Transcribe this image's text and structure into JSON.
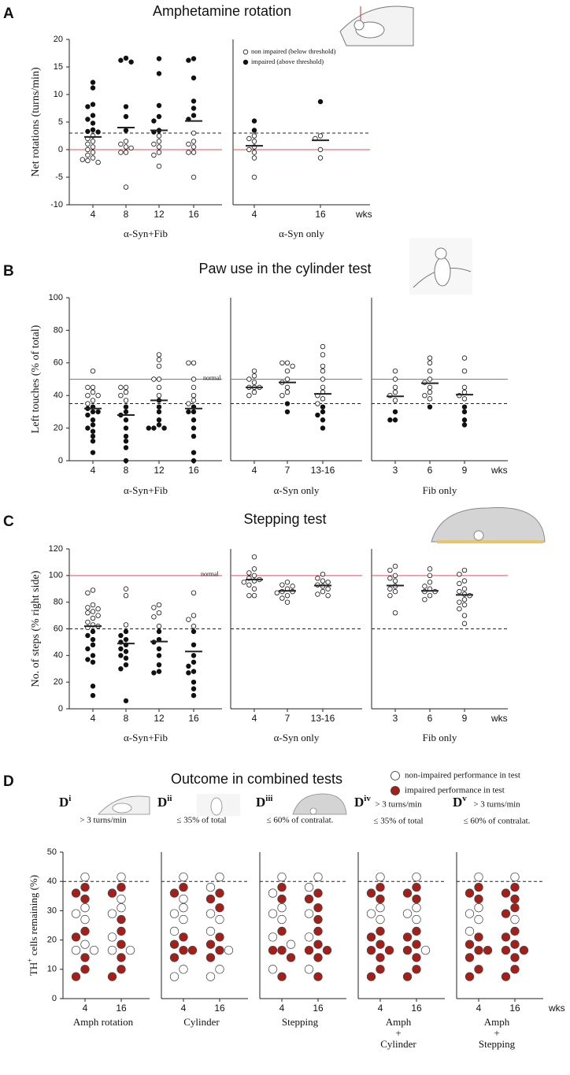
{
  "chart_data": [
    {
      "type": "strip",
      "panel": "A",
      "title": "Amphetamine rotation",
      "ylabel": "Net rotations (turns/min)",
      "ylim": [
        -10,
        20
      ],
      "yticks": [
        -10,
        -5,
        0,
        5,
        10,
        15,
        20
      ],
      "reference_line": 0,
      "threshold_line": 3,
      "reference_color": "#e0505a",
      "impaired_color": "#111111",
      "non_impaired_color": "#ffffff",
      "legend": [
        "non impaired (below threshold)",
        "impaired (above threshold)"
      ],
      "x_unit": "wks",
      "groups": [
        {
          "name": "α-Syn+Fib",
          "categories": [
            "4",
            "8",
            "12",
            "16"
          ],
          "non_impaired": [
            [
              2.5,
              2.0,
              1.5,
              1.0,
              0.5,
              0,
              -0.5,
              -1.0,
              -1.5,
              -2.0,
              -2.3,
              -1.8
            ],
            [
              1.5,
              1.0,
              0.5,
              0.3,
              -0.5,
              -0.5,
              -6.8
            ],
            [
              2.5,
              1.5,
              1.0,
              0.5,
              -0.5,
              -1.0,
              -3.0
            ],
            [
              3.0,
              1.5,
              1.0,
              0.5,
              -0.5,
              -0.5,
              -5.0
            ]
          ],
          "impaired": [
            [
              12.2,
              11.2,
              8.2,
              7.8,
              6.2,
              5.5,
              4.8,
              3.6,
              3.3,
              3.2
            ],
            [
              16.6,
              16.2,
              15.9,
              7.8,
              6.0,
              3.5
            ],
            [
              16.5,
              13.8,
              8.0,
              6.0,
              5.2,
              3.5,
              3.2
            ],
            [
              16.5,
              16.2,
              13.0,
              8.8,
              7.5,
              6.2,
              5.5
            ]
          ],
          "means": [
            2.3,
            4.0,
            3.5,
            5.2
          ]
        },
        {
          "name": "α-Syn only",
          "categories": [
            "4",
            "16"
          ],
          "non_impaired": [
            [
              2.5,
              2.0,
              1.5,
              0.5,
              0,
              -0.5,
              -1.5,
              -5.0
            ],
            [
              2.5,
              2.0,
              0,
              -1.5
            ]
          ],
          "impaired": [
            [
              5.2,
              3.5
            ],
            [
              8.7
            ]
          ],
          "means": [
            0.7,
            1.7
          ]
        }
      ]
    },
    {
      "type": "strip",
      "panel": "B",
      "title": "Paw use in the cylinder test",
      "ylabel": "Left touches (% of total)",
      "ylim": [
        0,
        100
      ],
      "yticks": [
        0,
        20,
        40,
        60,
        80,
        100
      ],
      "reference_line": 50,
      "threshold_line": 35,
      "reference_label": "normal",
      "reference_color": "#e0505a",
      "impaired_color": "#111111",
      "non_impaired_color": "#ffffff",
      "x_unit": "wks",
      "groups": [
        {
          "name": "α-Syn+Fib",
          "categories": [
            "4",
            "8",
            "12",
            "16"
          ],
          "non_impaired": [
            [
              55,
              45,
              45,
              42,
              40,
              40,
              37,
              35
            ],
            [
              45,
              45,
              42,
              40,
              37
            ],
            [
              65,
              62,
              58,
              50,
              50,
              45,
              40
            ],
            [
              60,
              60,
              50,
              45,
              40,
              37,
              35
            ]
          ],
          "impaired": [
            [
              33,
              32,
              30,
              30,
              28,
              25,
              22,
              20,
              18,
              15,
              12,
              5
            ],
            [
              33,
              30,
              28,
              25,
              20,
              15,
              12,
              8,
              0
            ],
            [
              37,
              33,
              30,
              25,
              22,
              20,
              20,
              20
            ],
            [
              33,
              30,
              30,
              25,
              20,
              15,
              5,
              0
            ]
          ],
          "means": [
            32,
            28,
            37,
            32
          ]
        },
        {
          "name": "α-Syn only",
          "categories": [
            "4",
            "7",
            "13-16"
          ],
          "non_impaired": [
            [
              55,
              52,
              50,
              48,
              45,
              45,
              45,
              42,
              40
            ],
            [
              60,
              60,
              58,
              55,
              50,
              48,
              45,
              42,
              40
            ],
            [
              70,
              65,
              58,
              55,
              50,
              45,
              42,
              40,
              38,
              35
            ]
          ],
          "impaired": [
            [],
            [
              35,
              30
            ],
            [
              33,
              30,
              28,
              25,
              20
            ]
          ],
          "means": [
            45,
            48,
            41
          ]
        },
        {
          "name": "Fib only",
          "categories": [
            "3",
            "6",
            "9"
          ],
          "non_impaired": [
            [
              55,
              50,
              45,
              42,
              40,
              37
            ],
            [
              63,
              60,
              55,
              50,
              48,
              45,
              42,
              40,
              38
            ],
            [
              63,
              55,
              45,
              42,
              40,
              38
            ]
          ],
          "impaired": [
            [
              30,
              25,
              25
            ],
            [
              33
            ],
            [
              33,
              30,
              25,
              22
            ]
          ],
          "means": [
            39.5,
            47.5,
            40.5
          ]
        }
      ]
    },
    {
      "type": "strip",
      "panel": "C",
      "title": "Stepping test",
      "ylabel": "No. of steps (% right side)",
      "ylim": [
        0,
        120
      ],
      "yticks": [
        0,
        20,
        40,
        60,
        80,
        100,
        120
      ],
      "reference_line": 100,
      "threshold_line": 60,
      "reference_label": "normal",
      "reference_color": "#e0505a",
      "impaired_color": "#111111",
      "non_impaired_color": "#ffffff",
      "x_unit": "wks",
      "groups": [
        {
          "name": "α-Syn+Fib",
          "categories": [
            "4",
            "8",
            "12",
            "16"
          ],
          "non_impaired": [
            [
              89,
              87,
              78,
              76,
              75,
              73,
              72,
              70,
              68,
              65,
              63,
              62,
              61
            ],
            [
              90,
              85,
              63
            ],
            [
              78,
              76,
              72,
              69,
              62
            ],
            [
              87,
              70,
              67,
              62
            ]
          ],
          "impaired": [
            [
              58,
              55,
              52,
              48,
              45,
              40,
              37,
              35,
              17,
              10
            ],
            [
              58,
              55,
              52,
              50,
              48,
              45,
              43,
              40,
              38,
              33,
              30,
              6
            ],
            [
              58,
              52,
              50,
              45,
              40,
              33,
              28,
              27
            ],
            [
              58,
              48,
              40,
              35,
              32,
              28,
              27,
              20,
              15,
              10
            ]
          ],
          "means": [
            62,
            49,
            50.5,
            43
          ]
        },
        {
          "name": "α-Syn only",
          "categories": [
            "4",
            "7",
            "13-16"
          ],
          "non_impaired": [
            [
              114,
              105,
              102,
              100,
              98,
              97,
              96,
              95,
              93,
              90,
              85,
              85
            ],
            [
              95,
              93,
              92,
              90,
              88,
              88,
              87,
              85,
              83,
              80
            ],
            [
              101,
              98,
              96,
              95,
              93,
              92,
              90,
              88,
              86,
              85
            ]
          ],
          "impaired": [
            [],
            [],
            []
          ],
          "means": [
            97,
            88.5,
            92.5
          ]
        },
        {
          "name": "Fib only",
          "categories": [
            "3",
            "6",
            "9"
          ],
          "non_impaired": [
            [
              107,
              104,
              100,
              98,
              96,
              92,
              90,
              88,
              85,
              72
            ],
            [
              105,
              100,
              95,
              92,
              90,
              88,
              88,
              85,
              82
            ],
            [
              104,
              101,
              96,
              94,
              90,
              88,
              86,
              85,
              82,
              80,
              78,
              75,
              70,
              64
            ]
          ],
          "impaired": [
            [],
            [],
            []
          ],
          "means": [
            92.5,
            88.5,
            85.5
          ]
        }
      ]
    },
    {
      "type": "dot-column",
      "panel": "D",
      "title": "Outcome in combined tests",
      "legend": [
        "non-impaired performance in test",
        "impaired performance in test"
      ],
      "ylabel_parts": [
        "TH",
        "+",
        " cells remaining (%)"
      ],
      "ylim": [
        0,
        50
      ],
      "yticks": [
        0,
        10,
        20,
        30,
        40,
        50
      ],
      "threshold_line": 40,
      "x_unit": "wks",
      "impaired_color": "#a51f1a",
      "non_impaired_color": "#ffffff",
      "subpanels": [
        {
          "label": "D",
          "sup": "i",
          "criteria": [
            "> 3 turns/min"
          ],
          "categories": [
            "4",
            "16"
          ],
          "xlabel": [
            "Amph rotation"
          ],
          "non_impaired": [
            [
              41.5,
              31,
              29,
              27,
              18.5,
              16.5,
              16.5
            ],
            [
              41.5,
              34,
              31,
              29,
              21,
              16.5,
              16.5
            ]
          ],
          "impaired": [
            [
              38,
              36,
              34,
              23,
              21,
              14,
              10,
              7.5
            ],
            [
              38,
              36,
              27,
              23,
              18.5,
              14,
              10,
              7.5
            ]
          ]
        },
        {
          "label": "D",
          "sup": "ii",
          "criteria": [
            "≤ 35% of total"
          ],
          "categories": [
            "4",
            "16"
          ],
          "xlabel": [
            "Cylinder"
          ],
          "non_impaired": [
            [
              41.5,
              34,
              31,
              29,
              27,
              23,
              10,
              7.5
            ],
            [
              41.5,
              38,
              29,
              27,
              23,
              16.5,
              10,
              7.5
            ]
          ],
          "impaired": [
            [
              38,
              36,
              21,
              18.5,
              16.5,
              16.5,
              14
            ],
            [
              36,
              34,
              31,
              21,
              18.5,
              16.5,
              14
            ]
          ]
        },
        {
          "label": "D",
          "sup": "iii",
          "criteria": [
            "≤ 60% of contralat."
          ],
          "categories": [
            "4",
            "16"
          ],
          "xlabel": [
            "Stepping"
          ],
          "non_impaired": [
            [
              41.5,
              36,
              31,
              29,
              27,
              21,
              18.5,
              10
            ],
            [
              41.5,
              38,
              29,
              21,
              10
            ]
          ],
          "impaired": [
            [
              38,
              34,
              23,
              16.5,
              16.5,
              14,
              7.5
            ],
            [
              36,
              34,
              31,
              27,
              23,
              18.5,
              16.5,
              16.5,
              14,
              7.5
            ]
          ]
        },
        {
          "label": "D",
          "sup": "iv",
          "criteria": [
            "> 3 turns/min",
            "≤ 35% of total"
          ],
          "categories": [
            "4",
            "16"
          ],
          "xlabel": [
            "Amph",
            "+",
            "Cylinder"
          ],
          "non_impaired": [
            [
              41.5,
              31,
              29,
              27
            ],
            [
              41.5,
              31,
              29,
              27,
              16.5
            ]
          ],
          "impaired": [
            [
              38,
              36,
              34,
              23,
              21,
              18.5,
              16.5,
              16.5,
              14,
              10,
              7.5
            ],
            [
              38,
              36,
              34,
              23,
              21,
              18.5,
              16.5,
              14,
              10,
              7.5
            ]
          ]
        },
        {
          "label": "D",
          "sup": "v",
          "criteria": [
            "> 3 turns/min",
            "≤ 60% of contralat."
          ],
          "categories": [
            "4",
            "16"
          ],
          "xlabel": [
            "Amph",
            "+",
            "Stepping"
          ],
          "non_impaired": [
            [
              41.5,
              31,
              29,
              27,
              23
            ],
            [
              41.5,
              27
            ]
          ],
          "impaired": [
            [
              38,
              36,
              34,
              21,
              18.5,
              16.5,
              16.5,
              14,
              10,
              7.5
            ],
            [
              38,
              36,
              34,
              31,
              29,
              23,
              21,
              18.5,
              16.5,
              16.5,
              14,
              10,
              7.5
            ]
          ]
        }
      ]
    }
  ]
}
